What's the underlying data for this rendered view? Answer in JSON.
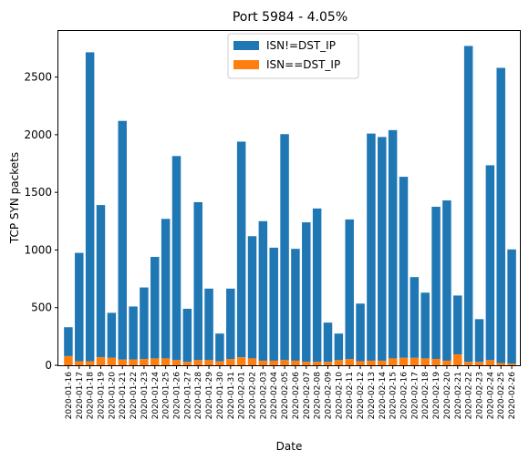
{
  "chart_data": {
    "type": "bar",
    "stacked": true,
    "title": "Port 5984 - 4.05%",
    "xlabel": "Date",
    "ylabel": "TCP SYN packets",
    "ylim": [
      0,
      2900
    ],
    "yticks": [
      0,
      500,
      1000,
      1500,
      2000,
      2500
    ],
    "grid": false,
    "legend_position": "top-center",
    "categories": [
      "2020-01-16",
      "2020-01-17",
      "2020-01-18",
      "2020-01-19",
      "2020-01-20",
      "2020-01-21",
      "2020-01-22",
      "2020-01-23",
      "2020-01-24",
      "2020-01-25",
      "2020-01-26",
      "2020-01-27",
      "2020-01-28",
      "2020-01-29",
      "2020-01-30",
      "2020-01-31",
      "2020-02-01",
      "2020-02-02",
      "2020-02-03",
      "2020-02-04",
      "2020-02-05",
      "2020-02-06",
      "2020-02-07",
      "2020-02-08",
      "2020-02-09",
      "2020-02-10",
      "2020-02-11",
      "2020-02-12",
      "2020-02-13",
      "2020-02-14",
      "2020-02-15",
      "2020-02-16",
      "2020-02-17",
      "2020-02-18",
      "2020-02-19",
      "2020-02-20",
      "2020-02-21",
      "2020-02-22",
      "2020-02-23",
      "2020-02-24",
      "2020-02-25",
      "2020-02-26"
    ],
    "xtick_labels": [
      "2020-01-16",
      "2020-01-17",
      "2020-01-18",
      "2020-01-19",
      "2020-01-20",
      "2020-01-21",
      "2020-01-22",
      "2020-01-23",
      "2020-01-24",
      "2020-01-25",
      "2020-01-26",
      "2020-01-27",
      "2020-01-28",
      "2020-01-29",
      "2020-01-30",
      "2020-01-31",
      "2020-02-01",
      "2020-02-02",
      "2020-02-03",
      "2020-02-04",
      "2020-02-05",
      "2020-02-06",
      "2020-02-07",
      "2020-02-08",
      "2020-02-09",
      "2020-02-10",
      "2020-02-11",
      "2020-02-12",
      "2020-02-13",
      "2020-02-14",
      "2020-02-15",
      "2020-02-16",
      "2020-02-17",
      "2020-02-18",
      "2020-02-19",
      "2020-02-20",
      "2020-02-21",
      "2020-02-22",
      "2020-02-23",
      "2020-02-24",
      "2020-02-25",
      "2020-02-26"
    ],
    "series": [
      {
        "name": "ISN!=DST_IP",
        "color": "#1f77b4",
        "values": [
          250,
          940,
          2680,
          1320,
          390,
          2070,
          460,
          620,
          880,
          1210,
          1770,
          460,
          1370,
          620,
          240,
          610,
          1870,
          1060,
          1210,
          980,
          1960,
          970,
          1210,
          1330,
          340,
          230,
          1210,
          500,
          1970,
          1940,
          1980,
          1570,
          700,
          570,
          1320,
          1390,
          510,
          2740,
          370,
          1690,
          2560,
          990
        ]
      },
      {
        "name": "ISN==DST_IP",
        "color": "#ff7f0e",
        "values": [
          80,
          35,
          35,
          70,
          65,
          50,
          50,
          55,
          60,
          60,
          45,
          30,
          45,
          45,
          35,
          55,
          70,
          60,
          40,
          40,
          45,
          40,
          30,
          30,
          30,
          45,
          55,
          35,
          40,
          40,
          60,
          65,
          65,
          60,
          55,
          40,
          95,
          30,
          30,
          45,
          20,
          15
        ]
      }
    ]
  }
}
